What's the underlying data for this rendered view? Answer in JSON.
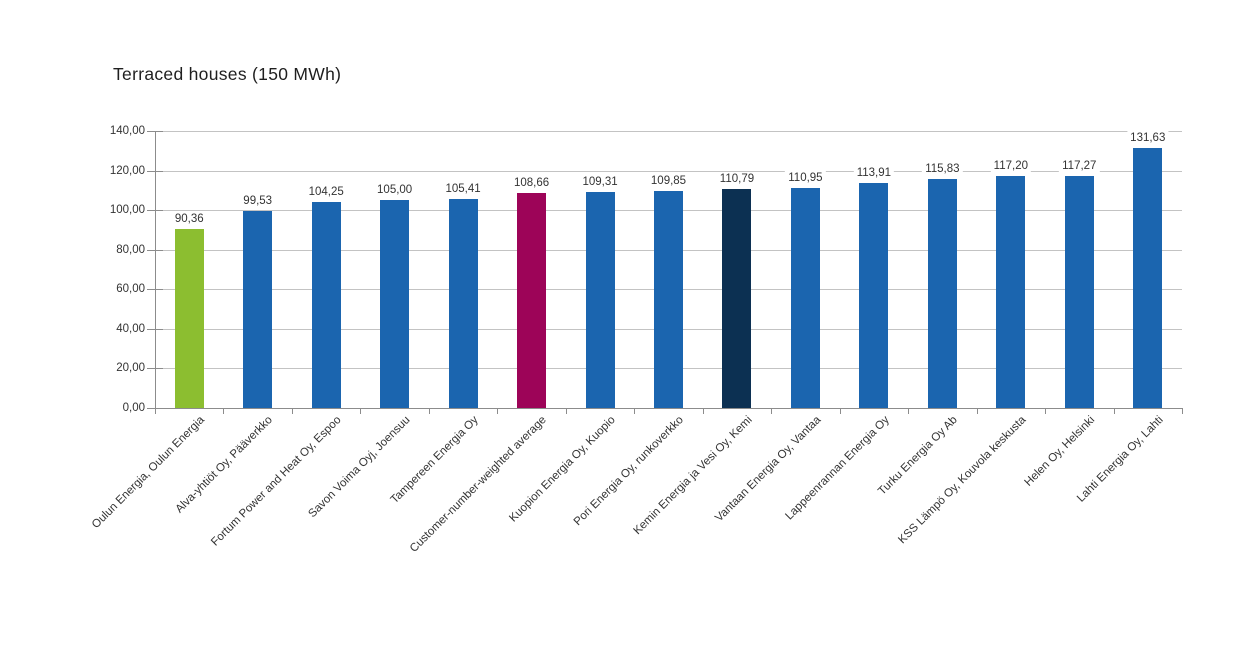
{
  "chart_data": {
    "type": "bar",
    "title": "Terraced houses (150 MWh)",
    "xlabel": "",
    "ylabel": "",
    "ylim": [
      0,
      140
    ],
    "ytick_step": 20,
    "grid": true,
    "legend": "none",
    "decimal_separator": "comma",
    "yticks": {
      "values": [
        0,
        20,
        40,
        60,
        80,
        100,
        120,
        140
      ],
      "labels": [
        "0,00",
        "20,00",
        "40,00",
        "60,00",
        "80,00",
        "100,00",
        "120,00",
        "140,00"
      ]
    },
    "categories": [
      "Oulun Energia, Oulun Energia",
      "Alva-yhtiöt Oy, Pääverkko",
      "Fortum Power and Heat Oy, Espoo",
      "Savon Voima Oyj, Joensuu",
      "Tampereen Energia Oy",
      "Customer-number-weighted average",
      "Kuopion Energia Oy, Kuopio",
      "Pori Energia Oy, runkoverkko",
      "Kemin Energia ja Vesi Oy, Kemi",
      "Vantaan Energia Oy, Vantaa",
      "Lappeenrannan Energia Oy",
      "Turku Energia Oy Ab",
      "KSS Lämpö Oy, Kouvola keskusta",
      "Helen Oy, Helsinki",
      "Lahti Energia Oy, Lahti"
    ],
    "values": [
      90.36,
      99.53,
      104.25,
      105.0,
      105.41,
      108.66,
      109.31,
      109.85,
      110.79,
      110.95,
      113.91,
      115.83,
      117.2,
      117.27,
      131.63
    ],
    "value_labels": [
      "90,36",
      "99,53",
      "104,25",
      "105,00",
      "105,41",
      "108,66",
      "109,31",
      "109,85",
      "110,79",
      "110,95",
      "113,91",
      "115,83",
      "117,20",
      "117,27",
      "131,63"
    ],
    "bar_colors": [
      "#8cbe30",
      "#1b65af",
      "#1b65af",
      "#1b65af",
      "#1b65af",
      "#9d0458",
      "#1b65af",
      "#1b65af",
      "#0c3052",
      "#1b65af",
      "#1b65af",
      "#1b65af",
      "#1b65af",
      "#1b65af",
      "#1b65af"
    ],
    "colors": {
      "default_bar": "#1b65af",
      "first_bar_highlight": "#8cbe30",
      "weighted_average_bar": "#9d0458",
      "kemi_bar": "#0c3052",
      "gridline": "#c3c3c3",
      "axis": "#8c8c8c",
      "text": "#333333",
      "title_text": "#1f1f1f",
      "background": "#ffffff"
    }
  }
}
